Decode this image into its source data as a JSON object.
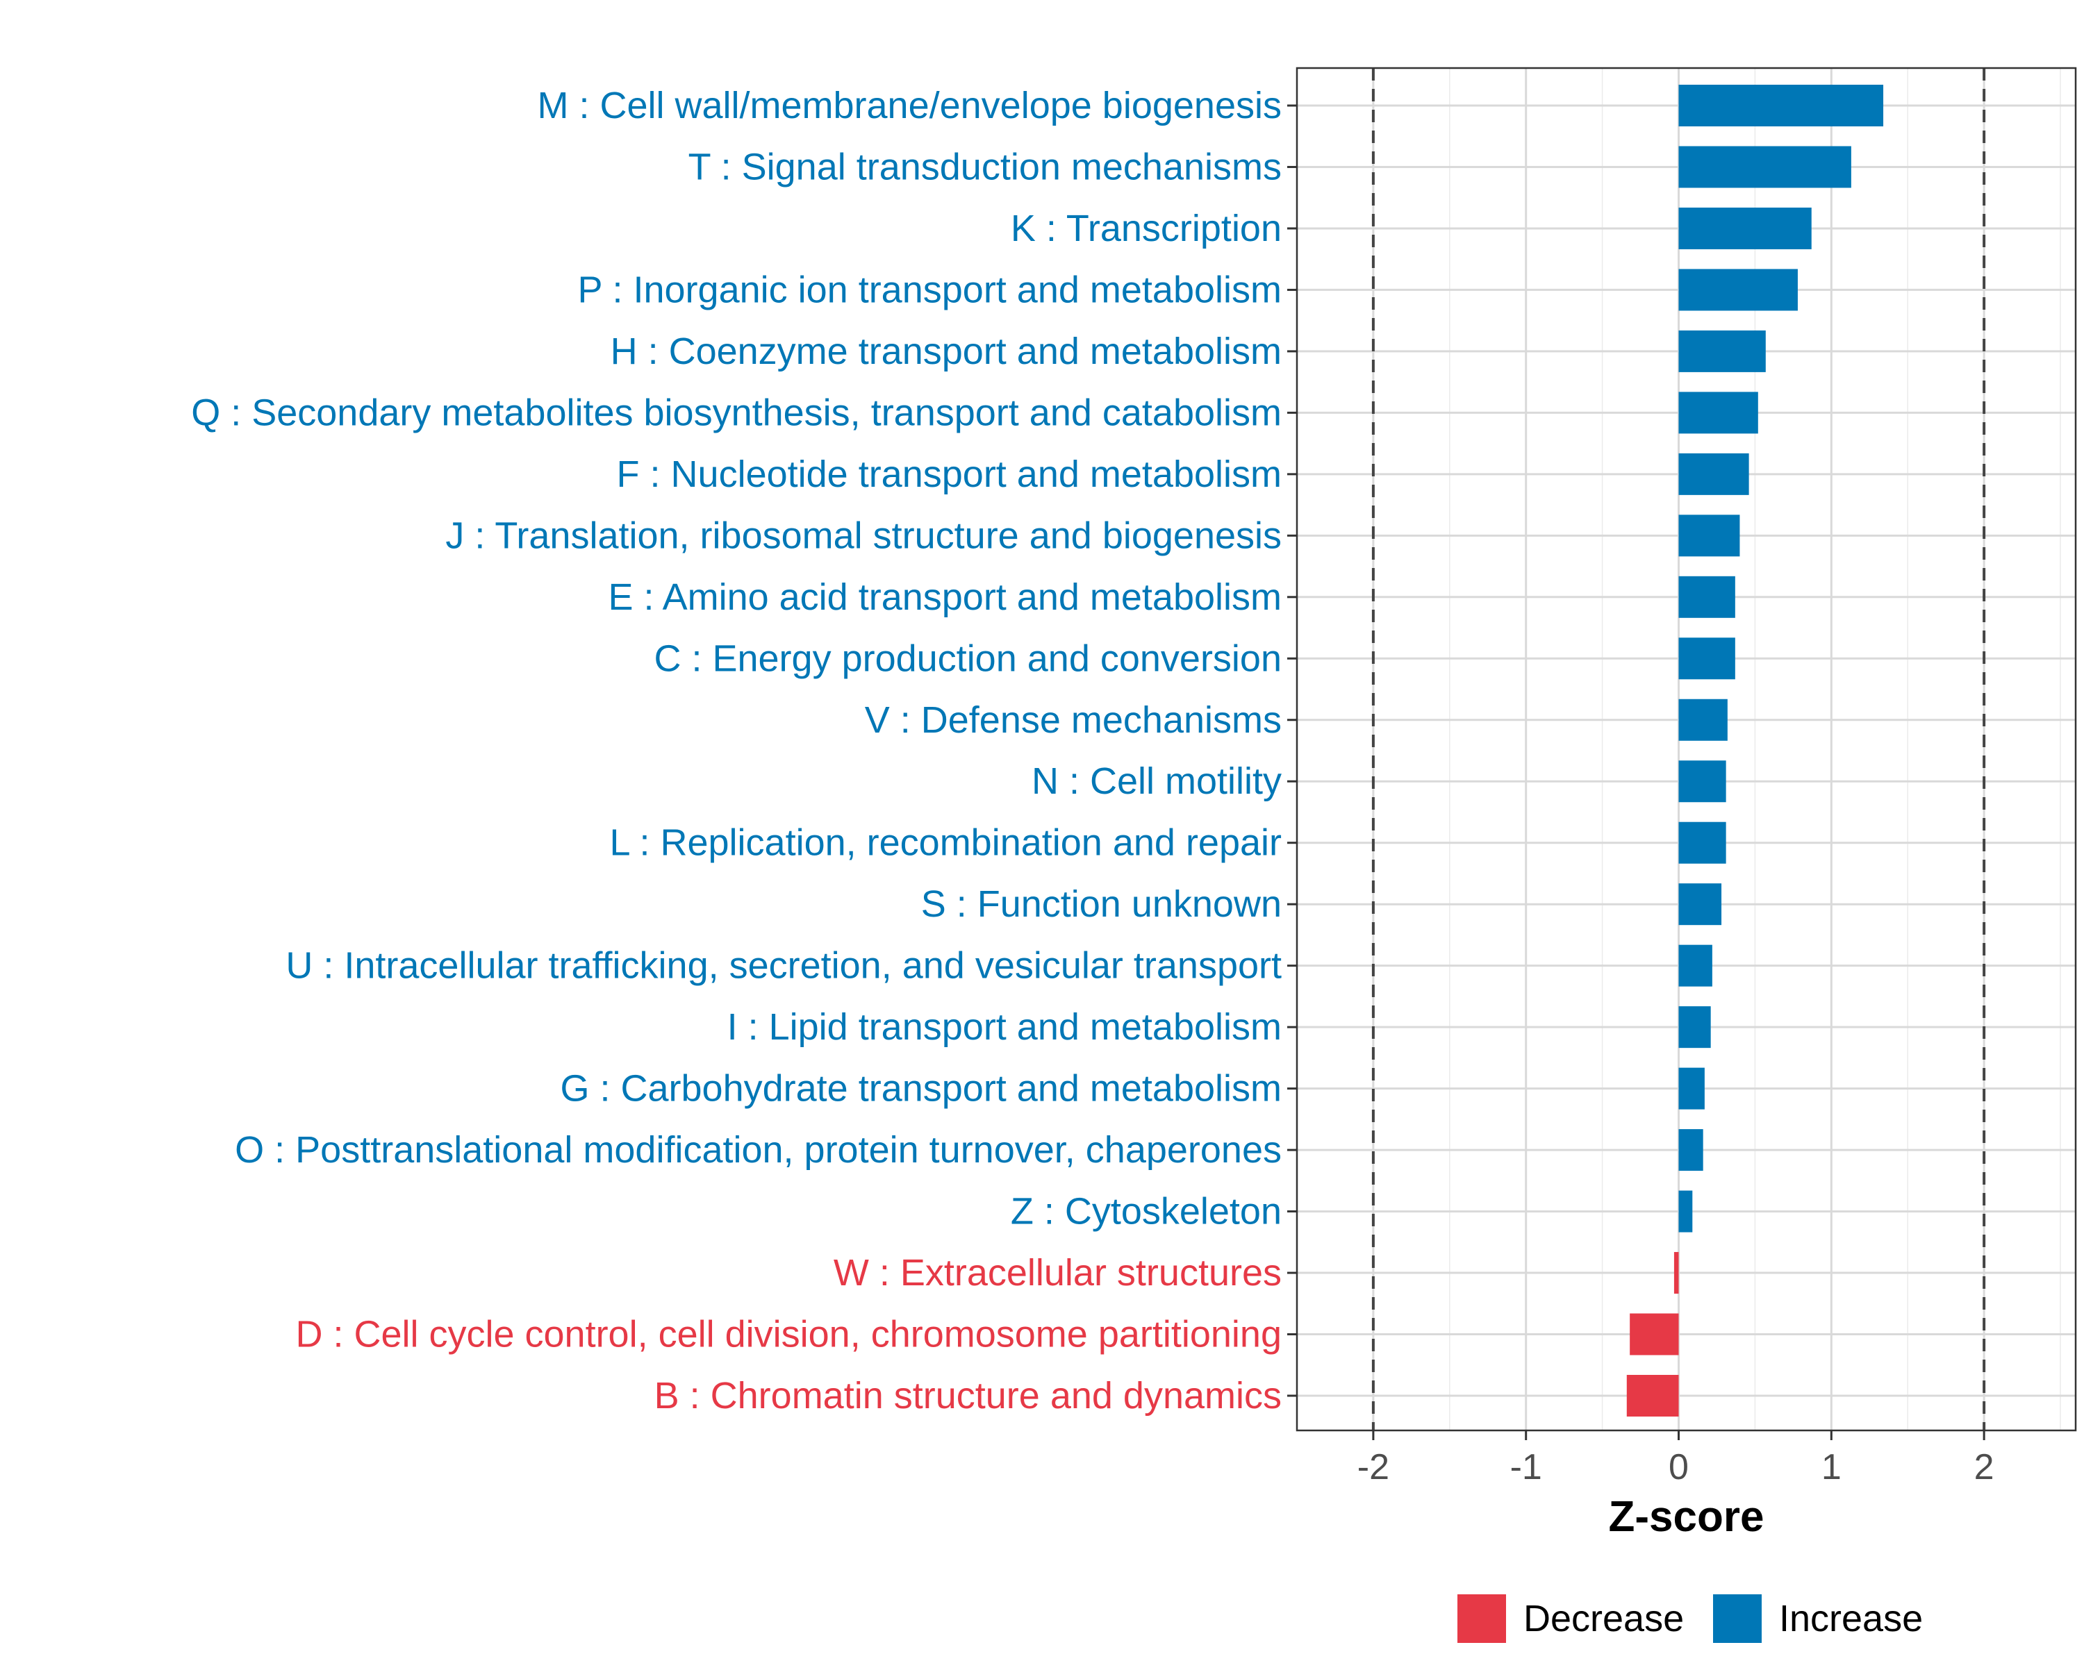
{
  "chart_data": {
    "type": "bar",
    "orientation": "horizontal",
    "title": "",
    "xlabel": "Z-score",
    "ylabel": "",
    "xlim": [
      -2.5,
      2.6
    ],
    "x_ticks": [
      -2,
      -1,
      0,
      1,
      2
    ],
    "x_tick_labels": [
      "-2",
      "-1",
      "0",
      "1",
      "2"
    ],
    "reference_lines": [
      -2,
      2
    ],
    "grid": true,
    "legend_position": "bottom",
    "legend": [
      {
        "label": "Decrease",
        "color": "#E63946"
      },
      {
        "label": "Increase",
        "color": "#0077B6"
      }
    ],
    "colors": {
      "Decrease": "#E63946",
      "Increase": "#0077B6"
    },
    "categories": [
      "M : Cell wall/membrane/envelope biogenesis",
      "T : Signal transduction mechanisms",
      "K : Transcription",
      "P : Inorganic ion transport and metabolism",
      "H : Coenzyme transport and metabolism",
      "Q : Secondary metabolites biosynthesis, transport and catabolism",
      "F : Nucleotide transport and metabolism",
      "J : Translation, ribosomal structure and biogenesis",
      "E : Amino acid transport and metabolism",
      "C : Energy production and conversion",
      "V : Defense mechanisms",
      "N : Cell motility",
      "L : Replication, recombination and repair",
      "S : Function unknown",
      "U : Intracellular trafficking, secretion, and vesicular transport",
      "I : Lipid transport and metabolism",
      "G : Carbohydrate transport and metabolism",
      "O : Posttranslational modification, protein turnover, chaperones",
      "Z : Cytoskeleton",
      "W : Extracellular structures",
      "D : Cell cycle control, cell division, chromosome partitioning",
      "B : Chromatin structure and dynamics"
    ],
    "values": [
      1.34,
      1.13,
      0.87,
      0.78,
      0.57,
      0.52,
      0.46,
      0.4,
      0.37,
      0.37,
      0.32,
      0.31,
      0.31,
      0.28,
      0.22,
      0.21,
      0.17,
      0.16,
      0.09,
      -0.03,
      -0.32,
      -0.34
    ],
    "directions": [
      "Increase",
      "Increase",
      "Increase",
      "Increase",
      "Increase",
      "Increase",
      "Increase",
      "Increase",
      "Increase",
      "Increase",
      "Increase",
      "Increase",
      "Increase",
      "Increase",
      "Increase",
      "Increase",
      "Increase",
      "Increase",
      "Increase",
      "Decrease",
      "Decrease",
      "Decrease"
    ]
  }
}
